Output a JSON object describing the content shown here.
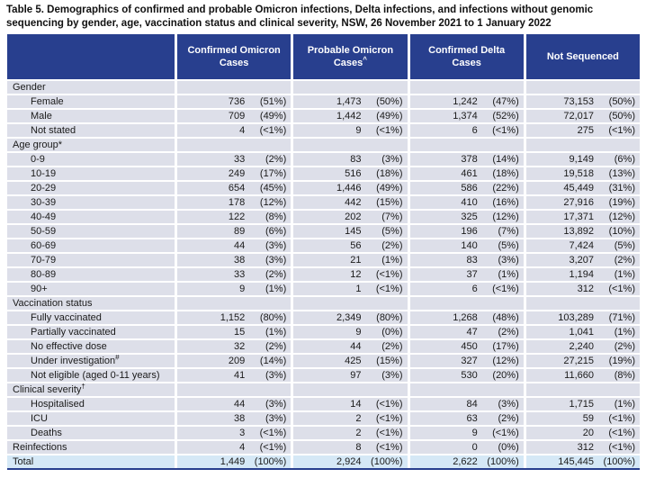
{
  "page": {
    "title": "Table 5. Demographics of confirmed and probable Omicron infections, Delta infections, and infections without genomic sequencing by gender, age, vaccination status and clinical severity, NSW, 26 November 2021 to 1 January 2022"
  },
  "colors": {
    "header_bg": "#283F8E",
    "header_text": "#FFFFFF",
    "row_bg": "#DDDFE9",
    "total_row_bg": "#D5E8F6",
    "body_text": "#1A1A1A"
  },
  "table": {
    "header": {
      "row_label_column": "",
      "columns": [
        {
          "label": "Confirmed Omicron Cases",
          "sup": ""
        },
        {
          "label": "Probable Omicron Cases",
          "sup": "^"
        },
        {
          "label": "Confirmed Delta Cases",
          "sup": ""
        },
        {
          "label": "Not Sequenced",
          "sup": ""
        }
      ]
    },
    "rows": [
      {
        "type": "section",
        "label": "Gender",
        "sup": "",
        "indent": false,
        "values": null
      },
      {
        "type": "data",
        "label": "Female",
        "sup": "",
        "indent": true,
        "values": [
          [
            "736",
            "(51%)"
          ],
          [
            "1,473",
            "(50%)"
          ],
          [
            "1,242",
            "(47%)"
          ],
          [
            "73,153",
            "(50%)"
          ]
        ]
      },
      {
        "type": "data",
        "label": "Male",
        "sup": "",
        "indent": true,
        "values": [
          [
            "709",
            "(49%)"
          ],
          [
            "1,442",
            "(49%)"
          ],
          [
            "1,374",
            "(52%)"
          ],
          [
            "72,017",
            "(50%)"
          ]
        ]
      },
      {
        "type": "data",
        "label": "Not stated",
        "sup": "",
        "indent": true,
        "values": [
          [
            "4",
            "(<1%)"
          ],
          [
            "9",
            "(<1%)"
          ],
          [
            "6",
            "(<1%)"
          ],
          [
            "275",
            "(<1%)"
          ]
        ]
      },
      {
        "type": "section",
        "label": "Age group*",
        "sup": "",
        "indent": false,
        "values": null
      },
      {
        "type": "data",
        "label": "0-9",
        "sup": "",
        "indent": true,
        "values": [
          [
            "33",
            "(2%)"
          ],
          [
            "83",
            "(3%)"
          ],
          [
            "378",
            "(14%)"
          ],
          [
            "9,149",
            "(6%)"
          ]
        ]
      },
      {
        "type": "data",
        "label": "10-19",
        "sup": "",
        "indent": true,
        "values": [
          [
            "249",
            "(17%)"
          ],
          [
            "516",
            "(18%)"
          ],
          [
            "461",
            "(18%)"
          ],
          [
            "19,518",
            "(13%)"
          ]
        ]
      },
      {
        "type": "data",
        "label": "20-29",
        "sup": "",
        "indent": true,
        "values": [
          [
            "654",
            "(45%)"
          ],
          [
            "1,446",
            "(49%)"
          ],
          [
            "586",
            "(22%)"
          ],
          [
            "45,449",
            "(31%)"
          ]
        ]
      },
      {
        "type": "data",
        "label": "30-39",
        "sup": "",
        "indent": true,
        "values": [
          [
            "178",
            "(12%)"
          ],
          [
            "442",
            "(15%)"
          ],
          [
            "410",
            "(16%)"
          ],
          [
            "27,916",
            "(19%)"
          ]
        ]
      },
      {
        "type": "data",
        "label": "40-49",
        "sup": "",
        "indent": true,
        "values": [
          [
            "122",
            "(8%)"
          ],
          [
            "202",
            "(7%)"
          ],
          [
            "325",
            "(12%)"
          ],
          [
            "17,371",
            "(12%)"
          ]
        ]
      },
      {
        "type": "data",
        "label": "50-59",
        "sup": "",
        "indent": true,
        "values": [
          [
            "89",
            "(6%)"
          ],
          [
            "145",
            "(5%)"
          ],
          [
            "196",
            "(7%)"
          ],
          [
            "13,892",
            "(10%)"
          ]
        ]
      },
      {
        "type": "data",
        "label": "60-69",
        "sup": "",
        "indent": true,
        "values": [
          [
            "44",
            "(3%)"
          ],
          [
            "56",
            "(2%)"
          ],
          [
            "140",
            "(5%)"
          ],
          [
            "7,424",
            "(5%)"
          ]
        ]
      },
      {
        "type": "data",
        "label": "70-79",
        "sup": "",
        "indent": true,
        "values": [
          [
            "38",
            "(3%)"
          ],
          [
            "21",
            "(1%)"
          ],
          [
            "83",
            "(3%)"
          ],
          [
            "3,207",
            "(2%)"
          ]
        ]
      },
      {
        "type": "data",
        "label": "80-89",
        "sup": "",
        "indent": true,
        "values": [
          [
            "33",
            "(2%)"
          ],
          [
            "12",
            "(<1%)"
          ],
          [
            "37",
            "(1%)"
          ],
          [
            "1,194",
            "(1%)"
          ]
        ]
      },
      {
        "type": "data",
        "label": "90+",
        "sup": "",
        "indent": true,
        "values": [
          [
            "9",
            "(1%)"
          ],
          [
            "1",
            "(<1%)"
          ],
          [
            "6",
            "(<1%)"
          ],
          [
            "312",
            "(<1%)"
          ]
        ]
      },
      {
        "type": "section",
        "label": "Vaccination status",
        "sup": "",
        "indent": false,
        "values": null
      },
      {
        "type": "data",
        "label": "Fully vaccinated",
        "sup": "",
        "indent": true,
        "values": [
          [
            "1,152",
            "(80%)"
          ],
          [
            "2,349",
            "(80%)"
          ],
          [
            "1,268",
            "(48%)"
          ],
          [
            "103,289",
            "(71%)"
          ]
        ]
      },
      {
        "type": "data",
        "label": "Partially vaccinated",
        "sup": "",
        "indent": true,
        "values": [
          [
            "15",
            "(1%)"
          ],
          [
            "9",
            "(0%)"
          ],
          [
            "47",
            "(2%)"
          ],
          [
            "1,041",
            "(1%)"
          ]
        ]
      },
      {
        "type": "data",
        "label": "No effective dose",
        "sup": "",
        "indent": true,
        "values": [
          [
            "32",
            "(2%)"
          ],
          [
            "44",
            "(2%)"
          ],
          [
            "450",
            "(17%)"
          ],
          [
            "2,240",
            "(2%)"
          ]
        ]
      },
      {
        "type": "data",
        "label": "Under investigation",
        "sup": "#",
        "indent": true,
        "values": [
          [
            "209",
            "(14%)"
          ],
          [
            "425",
            "(15%)"
          ],
          [
            "327",
            "(12%)"
          ],
          [
            "27,215",
            "(19%)"
          ]
        ]
      },
      {
        "type": "data",
        "label": "Not eligible (aged 0-11 years)",
        "sup": "",
        "indent": true,
        "values": [
          [
            "41",
            "(3%)"
          ],
          [
            "97",
            "(3%)"
          ],
          [
            "530",
            "(20%)"
          ],
          [
            "11,660",
            "(8%)"
          ]
        ]
      },
      {
        "type": "section",
        "label": "Clinical severity",
        "sup": "†",
        "indent": false,
        "values": null
      },
      {
        "type": "data",
        "label": "Hospitalised",
        "sup": "",
        "indent": true,
        "values": [
          [
            "44",
            "(3%)"
          ],
          [
            "14",
            "(<1%)"
          ],
          [
            "84",
            "(3%)"
          ],
          [
            "1,715",
            "(1%)"
          ]
        ]
      },
      {
        "type": "data",
        "label": "ICU",
        "sup": "",
        "indent": true,
        "values": [
          [
            "38",
            "(3%)"
          ],
          [
            "2",
            "(<1%)"
          ],
          [
            "63",
            "(2%)"
          ],
          [
            "59",
            "(<1%)"
          ]
        ]
      },
      {
        "type": "data",
        "label": "Deaths",
        "sup": "",
        "indent": true,
        "values": [
          [
            "3",
            "(<1%)"
          ],
          [
            "2",
            "(<1%)"
          ],
          [
            "9",
            "(<1%)"
          ],
          [
            "20",
            "(<1%)"
          ]
        ]
      },
      {
        "type": "data",
        "label": "Reinfections",
        "sup": "",
        "indent": false,
        "values": [
          [
            "4",
            "(<1%)"
          ],
          [
            "8",
            "(<1%)"
          ],
          [
            "0",
            "(0%)"
          ],
          [
            "312",
            "(<1%)"
          ]
        ]
      },
      {
        "type": "total",
        "label": "Total",
        "sup": "",
        "values": [
          [
            "1,449",
            "(100%)"
          ],
          [
            "2,924",
            "(100%)"
          ],
          [
            "2,622",
            "(100%)"
          ],
          [
            "145,445",
            "(100%)"
          ]
        ]
      }
    ]
  }
}
